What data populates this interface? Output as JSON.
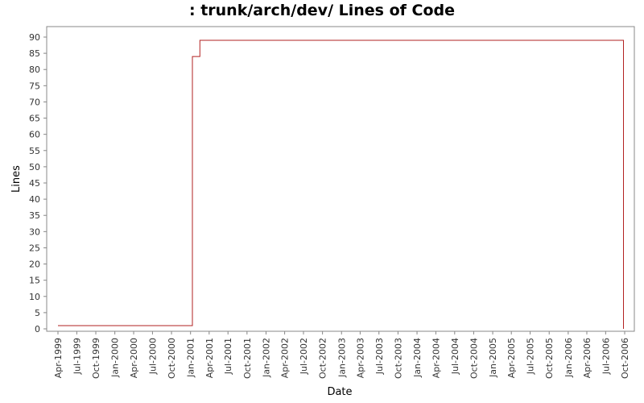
{
  "chart_data": {
    "type": "line",
    "title": ": trunk/arch/dev/ Lines of Code",
    "xlabel": "Date",
    "ylabel": "Lines",
    "ylim": [
      0,
      92
    ],
    "y_ticks": [
      0,
      5,
      10,
      15,
      20,
      25,
      30,
      35,
      40,
      45,
      50,
      55,
      60,
      65,
      70,
      75,
      80,
      85,
      90
    ],
    "x_ticks": [
      "Apr-1999",
      "Jul-1999",
      "Oct-1999",
      "Jan-2000",
      "Apr-2000",
      "Jul-2000",
      "Oct-2000",
      "Jan-2001",
      "Apr-2001",
      "Jul-2001",
      "Oct-2001",
      "Jan-2002",
      "Apr-2002",
      "Jul-2002",
      "Oct-2002",
      "Jan-2003",
      "Apr-2003",
      "Jul-2003",
      "Oct-2003",
      "Jan-2004",
      "Apr-2004",
      "Jul-2004",
      "Oct-2004",
      "Jan-2005",
      "Apr-2005",
      "Jul-2005",
      "Oct-2005",
      "Jan-2006",
      "Apr-2006",
      "Jul-2006",
      "Oct-2006"
    ],
    "grid": false,
    "step": true,
    "series": [
      {
        "color": "#b22222",
        "points": [
          {
            "x": "1999-04-01",
            "y": 1
          },
          {
            "x": "2001-01-10",
            "y": 84
          },
          {
            "x": "2001-02-15",
            "y": 89
          },
          {
            "x": "2006-09-25",
            "y": 0
          }
        ]
      }
    ]
  }
}
